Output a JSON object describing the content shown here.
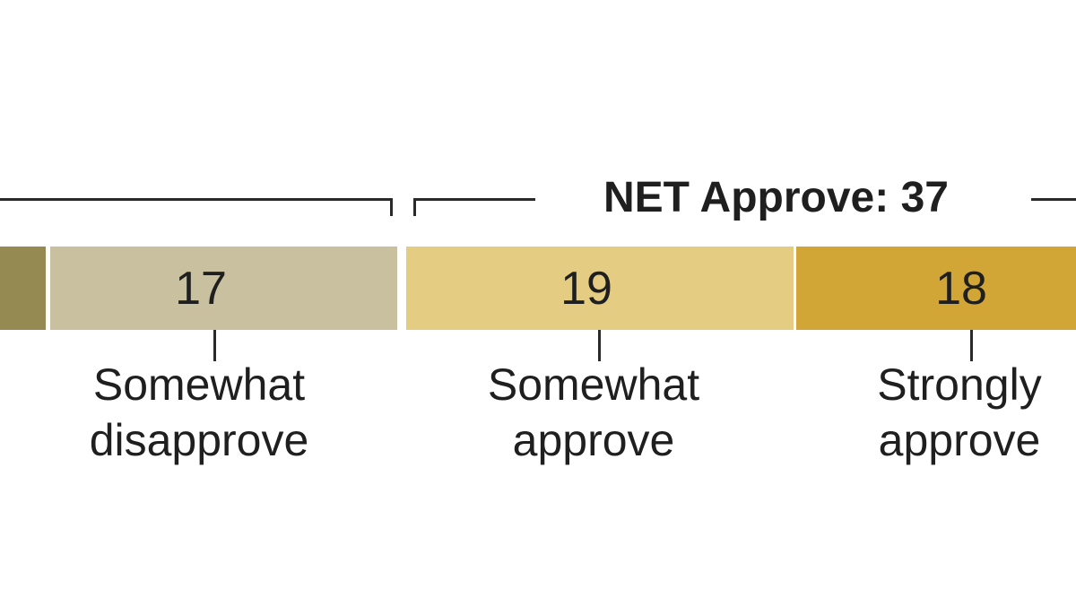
{
  "chart_data": {
    "type": "bar",
    "orientation": "horizontal-stacked",
    "note": "cropped view: leftmost segment and net-disapprove bracket label are cut off at the image edges",
    "legend_position": "below-bar",
    "grid": false,
    "net_annotation": {
      "label": "NET Approve: 37",
      "value": 37,
      "bracket_over": [
        "somewhat-approve",
        "strongly-approve"
      ]
    },
    "segments": [
      {
        "id": "strongly-disapprove-clipped",
        "value": null,
        "label_line1": "",
        "label_line2": "",
        "color": "#958b52"
      },
      {
        "id": "somewhat-disapprove",
        "value": 17,
        "label_line1": "Somewhat",
        "label_line2": "disapprove",
        "color": "#c9c0a0"
      },
      {
        "id": "somewhat-approve",
        "value": 19,
        "label_line1": "Somewhat",
        "label_line2": "approve",
        "color": "#e5cc83"
      },
      {
        "id": "strongly-approve",
        "value": 18,
        "label_line1": "Strongly",
        "label_line2": "approve",
        "color": "#d1a636"
      }
    ]
  },
  "colors": {
    "background": "#ffffff",
    "text": "#1f1f1f",
    "line": "#2a2a2a",
    "segment_strongly_disapprove": "#958b52",
    "segment_somewhat_disapprove": "#c9c0a0",
    "segment_somewhat_approve": "#e5cc83",
    "segment_strongly_approve": "#d1a636"
  }
}
